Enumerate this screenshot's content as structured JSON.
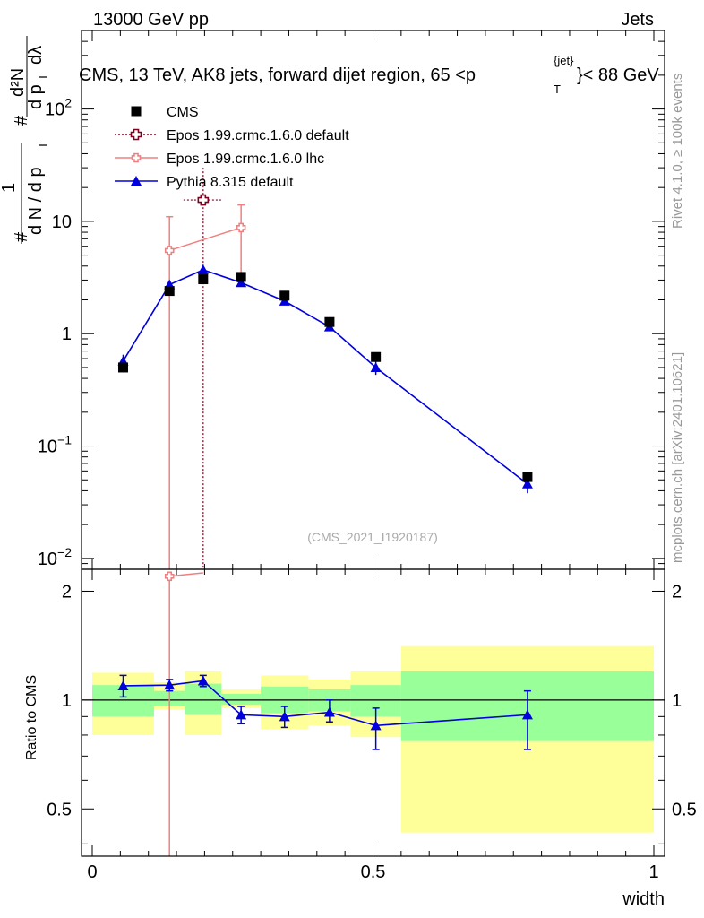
{
  "header": {
    "left": "13000 GeV pp",
    "right": "Jets"
  },
  "side_labels": {
    "rivet": "Rivet 4.1.0, ≥ 100k events",
    "mcplots": "mcplots.cern.ch [arXiv:2401.10621]"
  },
  "chart_data": {
    "type": "line",
    "title": "CMS, 13 TeV, AK8 jets, forward dijet region, 65 <p",
    "title_sup": "{jet}",
    "title_sub": "T",
    "title_end": "}< 88 GeV",
    "watermark": "(CMS_2021_I1920187)",
    "xlabel": "width",
    "ylabel_upper": {
      "num_prefix": "#",
      "num_one": "1",
      "num_mid": "#",
      "num_d2n": "d²N",
      "den": "d N / d p",
      "den_sub": "T",
      "den_hash": "#",
      "den2": "d p",
      "den2_sub": "T",
      "den_lambda": "dλ"
    },
    "ylabel_lower": "Ratio to CMS",
    "xlim": [
      0,
      1
    ],
    "ylim_upper": [
      0.008,
      500
    ],
    "ylim_lower": [
      0.37,
      2.3
    ],
    "upper_y_ticks": [
      {
        "v": 0.01,
        "base": "10",
        "exp": "−2"
      },
      {
        "v": 0.1,
        "base": "10",
        "exp": "−1"
      },
      {
        "v": 1,
        "base": "1",
        "exp": ""
      },
      {
        "v": 10,
        "base": "10",
        "exp": ""
      },
      {
        "v": 100,
        "base": "10",
        "exp": "2"
      }
    ],
    "lower_y_ticks": [
      {
        "v": 0.5,
        "label": "0.5"
      },
      {
        "v": 1,
        "label": "1"
      },
      {
        "v": 2,
        "label": "2"
      }
    ],
    "x_ticks": [
      {
        "v": 0,
        "label": "0"
      },
      {
        "v": 0.5,
        "label": "0.5"
      },
      {
        "v": 1,
        "label": "1"
      }
    ],
    "bin_edges": [
      0,
      0.11,
      0.165,
      0.23,
      0.3,
      0.385,
      0.46,
      0.55,
      1.0
    ],
    "bin_centers": [
      0.055,
      0.1375,
      0.1975,
      0.265,
      0.3425,
      0.4225,
      0.505,
      0.775
    ],
    "series": [
      {
        "name": "CMS",
        "color": "#000000",
        "marker": "square",
        "values": [
          0.5,
          2.4,
          3.05,
          3.2,
          2.18,
          1.27,
          0.62,
          0.053
        ]
      },
      {
        "name": "Epos 1.99.crmc.1.6.0 default",
        "color": "#800020",
        "marker": "open-cross",
        "points": [
          {
            "x": 0.1975,
            "y": 15.5,
            "xerr": 0.035,
            "ylo": 0.0001,
            "yhi": 30
          }
        ]
      },
      {
        "name": "Epos 1.99.crmc.1.6.0 lhc",
        "color": "#f08080",
        "marker": "open-cross",
        "points": [
          {
            "x": 0.1375,
            "y": 5.5,
            "ylo": 0.0001,
            "yhi": 11
          },
          {
            "x": 0.265,
            "y": 8.8,
            "ylo": 3.2,
            "yhi": 14
          }
        ]
      },
      {
        "name": "Pythia 8.315 default",
        "color": "#0000dd",
        "marker": "triangle",
        "values": [
          0.57,
          2.73,
          3.7,
          2.85,
          1.95,
          1.15,
          0.5,
          0.046
        ],
        "err_lo": [
          0.5,
          2.55,
          3.5,
          2.7,
          1.85,
          1.08,
          0.43,
          0.038
        ],
        "err_hi": [
          0.65,
          2.9,
          3.9,
          3.0,
          2.05,
          1.22,
          0.57,
          0.054
        ]
      }
    ],
    "ratio": {
      "band_inner": [
        [
          0.9,
          1.1
        ],
        [
          0.96,
          1.06
        ],
        [
          0.91,
          1.11
        ],
        [
          0.97,
          1.04
        ],
        [
          0.92,
          1.09
        ],
        [
          0.93,
          1.07
        ],
        [
          0.9,
          1.1
        ],
        [
          0.77,
          1.2
        ]
      ],
      "band_outer": [
        [
          0.8,
          1.19
        ],
        [
          0.94,
          1.12
        ],
        [
          0.8,
          1.2
        ],
        [
          0.95,
          1.07
        ],
        [
          0.83,
          1.17
        ],
        [
          0.85,
          1.14
        ],
        [
          0.79,
          1.2
        ],
        [
          0.43,
          1.41
        ]
      ],
      "band_inner_color": "#99ff99",
      "band_outer_color": "#ffff99",
      "pythia": [
        1.095,
        1.1,
        1.13,
        0.91,
        0.9,
        0.925,
        0.85,
        0.91
      ],
      "pythia_lo": [
        1.02,
        1.06,
        1.09,
        0.86,
        0.84,
        0.87,
        0.73,
        0.73
      ],
      "pythia_hi": [
        1.17,
        1.14,
        1.17,
        0.96,
        0.96,
        1.0,
        0.95,
        1.06
      ],
      "epos_lhc": [
        {
          "x": 0.1375,
          "y": 2.2,
          "ylo": 0.0001,
          "yhi": 5
        }
      ]
    }
  }
}
